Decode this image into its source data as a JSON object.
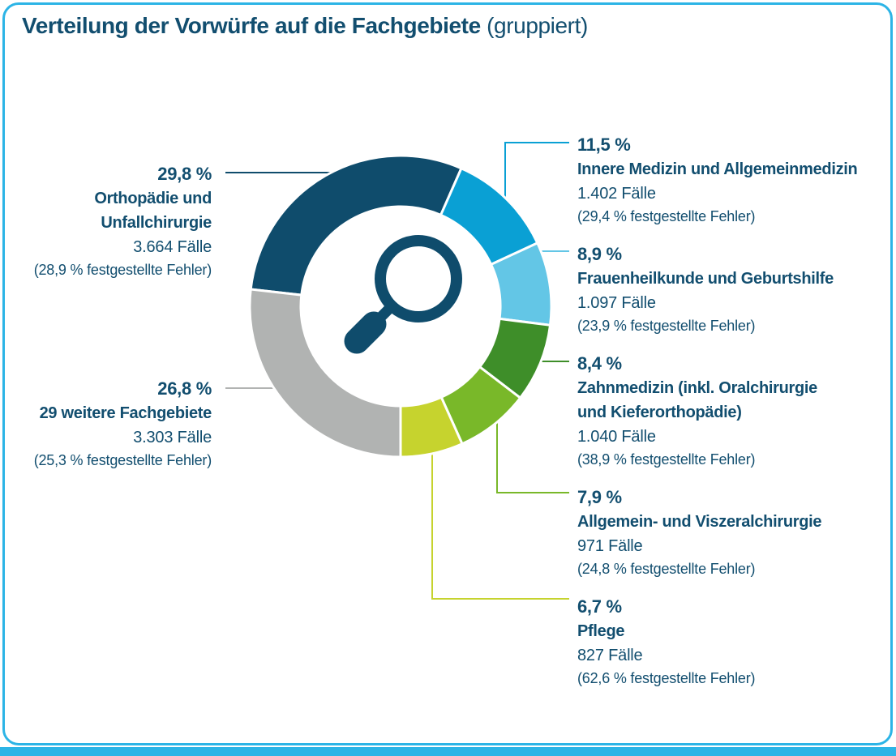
{
  "page": {
    "title": "Verteilung der Vorwürfe auf die Fachgebiete",
    "title_suffix": " (gruppiert)",
    "accent_color": "#2cb4e6",
    "text_color": "#124e6f",
    "background_color": "#ffffff"
  },
  "center_icon": "magnifier-icon",
  "chart_data": {
    "type": "pie",
    "subtype": "donut",
    "title": "Verteilung der Vorwürfe auf die Fachgebiete (gruppiert)",
    "start_angle_deg_clockwise_from_north": 276.48,
    "gap_color": "#ffffff",
    "segments": [
      {
        "percent": "29,8 %",
        "value": 29.8,
        "label": "Orthopädie und\nUnfallchirurgie",
        "cases": "3.664 Fälle",
        "error_note": "(28,9 % festgestellte Fehler)",
        "color": "#0f4c6c",
        "side": "left"
      },
      {
        "percent": "11,5 %",
        "value": 11.5,
        "label": "Innere Medizin und Allgemeinmedizin",
        "cases": "1.402 Fälle",
        "error_note": "(29,4 % festgestellte Fehler)",
        "color": "#0aa0d4",
        "side": "right"
      },
      {
        "percent": "8,9 %",
        "value": 8.9,
        "label": "Frauenheilkunde und Geburtshilfe",
        "cases": "1.097 Fälle",
        "error_note": "(23,9 % festgestellte Fehler)",
        "color": "#63c6e6",
        "side": "right"
      },
      {
        "percent": "8,4 %",
        "value": 8.4,
        "label": "Zahnmedizin (inkl. Oralchirurgie\nund Kieferorthopädie)",
        "cases": "1.040 Fälle",
        "error_note": "(38,9 % festgestellte Fehler)",
        "color": "#3e8e29",
        "side": "right"
      },
      {
        "percent": "7,9 %",
        "value": 7.9,
        "label": "Allgemein- und Viszeralchirurgie",
        "cases": "971 Fälle",
        "error_note": "(24,8 % festgestellte Fehler)",
        "color": "#79b829",
        "side": "right"
      },
      {
        "percent": "6,7 %",
        "value": 6.7,
        "label": "Pflege",
        "cases": "827 Fälle",
        "error_note": "(62,6 % festgestellte Fehler)",
        "color": "#c6d32e",
        "side": "right"
      },
      {
        "percent": "26,8 %",
        "value": 26.8,
        "label": "29 weitere Fachgebiete",
        "cases": "3.303 Fälle",
        "error_note": "(25,3 % festgestellte Fehler)",
        "color": "#b1b3b2",
        "side": "left"
      }
    ]
  }
}
